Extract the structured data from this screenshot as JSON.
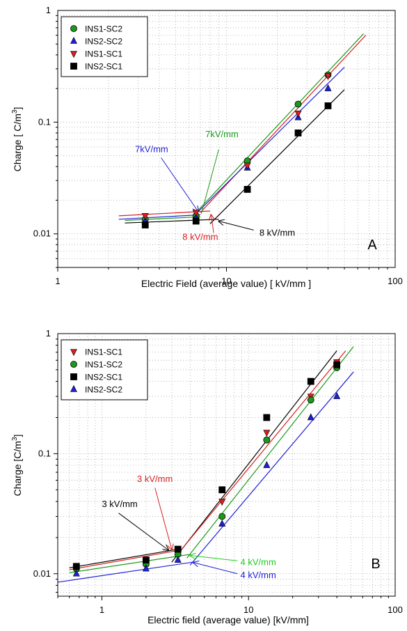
{
  "chart_data": [
    {
      "type": "scatter",
      "panel_label": "A",
      "xlabel": "Electric Field (average value) [ kV/mm ]",
      "ylabel_main": "Charge [ C/m",
      "ylabel_sup": "3",
      "ylabel_end": "]",
      "x_scale": "log",
      "y_scale": "log",
      "xlim": [
        1,
        100
      ],
      "ylim": [
        0.005,
        1
      ],
      "x_ticks": [
        {
          "v": 1,
          "label": "1"
        },
        {
          "v": 10,
          "label": "10"
        },
        {
          "v": 100,
          "label": "100"
        }
      ],
      "y_ticks": [
        {
          "v": 0.01,
          "label": "0.01"
        },
        {
          "v": 0.1,
          "label": "0.1"
        },
        {
          "v": 1,
          "label": "1"
        }
      ],
      "grid": "dotted",
      "legend_position": "top-left",
      "series": [
        {
          "name": "INS1-SC2",
          "marker": "circle",
          "color": "#1a9a1a",
          "x": [
            3.3,
            6.6,
            13.3,
            26.6,
            40
          ],
          "y": [
            0.0135,
            0.0145,
            0.045,
            0.145,
            0.265
          ]
        },
        {
          "name": "INS2-SC2",
          "marker": "triangle-up",
          "color": "#1f1fd6",
          "x": [
            3.3,
            6.6,
            13.3,
            26.6,
            40
          ],
          "y": [
            0.013,
            0.014,
            0.039,
            0.11,
            0.2
          ]
        },
        {
          "name": "INS1-SC1",
          "marker": "triangle-down",
          "color": "#d62020",
          "x": [
            3.3,
            6.6,
            13.3,
            26.6,
            40
          ],
          "y": [
            0.0145,
            0.0155,
            0.041,
            0.12,
            0.26
          ]
        },
        {
          "name": "INS2-SC1",
          "marker": "square",
          "color": "#000000",
          "x": [
            3.3,
            6.6,
            13.3,
            26.6,
            40
          ],
          "y": [
            0.012,
            0.013,
            0.025,
            0.08,
            0.14
          ]
        }
      ],
      "fit_lines": [
        {
          "color": "#1a9a1a",
          "pts": [
            [
              6.6,
              0.0155
            ],
            [
              65,
              0.62
            ]
          ]
        },
        {
          "color": "#d62020",
          "pts": [
            [
              2.3,
              0.0145
            ],
            [
              8,
              0.016
            ]
          ]
        },
        {
          "color": "#d62020",
          "pts": [
            [
              7,
              0.0155
            ],
            [
              67,
              0.6
            ]
          ]
        },
        {
          "color": "#1f1fd6",
          "pts": [
            [
              2.3,
              0.0135
            ],
            [
              7,
              0.0148
            ]
          ]
        },
        {
          "color": "#1f1fd6",
          "pts": [
            [
              6.5,
              0.0148
            ],
            [
              50,
              0.31
            ]
          ]
        },
        {
          "color": "#1a9a1a",
          "pts": [
            [
              2.5,
              0.0132
            ],
            [
              7,
              0.0142
            ]
          ]
        },
        {
          "color": "#000000",
          "pts": [
            [
              2.5,
              0.0125
            ],
            [
              9,
              0.0135
            ]
          ]
        },
        {
          "color": "#000000",
          "pts": [
            [
              8,
              0.0123
            ],
            [
              50,
              0.195
            ]
          ]
        }
      ],
      "annotations": [
        {
          "text": "7kV/mm",
          "color": "#1a9a1a",
          "tx": 9.4,
          "ty": 0.0735,
          "anchor": "middle",
          "from": [
            9.0,
            0.057
          ],
          "to": [
            7.1,
            0.0152
          ],
          "arrow": "line"
        },
        {
          "text": "7kV/mm",
          "color": "#1f1fd6",
          "tx": 3.6,
          "ty": 0.054,
          "anchor": "middle",
          "from": [
            4.1,
            0.048
          ],
          "to": [
            6.8,
            0.0158
          ],
          "arrow": "open"
        },
        {
          "text": "8 kV/mm",
          "color": "#d62020",
          "tx": 7.0,
          "ty": 0.0088,
          "anchor": "middle",
          "from": [
            8.4,
            0.0102
          ],
          "to": [
            8.1,
            0.0148
          ],
          "arrow": "open"
        },
        {
          "text": "8 kV/mm",
          "color": "#000000",
          "tx": 20,
          "ty": 0.0096,
          "anchor": "middle",
          "from": [
            14.5,
            0.0108
          ],
          "to": [
            9.0,
            0.013
          ],
          "arrow": "open"
        }
      ]
    },
    {
      "type": "scatter",
      "panel_label": "B",
      "xlabel": "Electric field (average value) [kV/mm]",
      "ylabel_main": "Charge [C/m",
      "ylabel_sup": "3",
      "ylabel_end": "]",
      "x_scale": "log",
      "y_scale": "log",
      "xlim": [
        0.5,
        100
      ],
      "ylim": [
        0.0065,
        1
      ],
      "x_ticks": [
        {
          "v": 1,
          "label": "1"
        },
        {
          "v": 10,
          "label": "10"
        },
        {
          "v": 100,
          "label": "100"
        }
      ],
      "y_ticks": [
        {
          "v": 0.01,
          "label": "0.01"
        },
        {
          "v": 0.1,
          "label": "0.1"
        },
        {
          "v": 1,
          "label": "1"
        }
      ],
      "grid": "dotted",
      "legend_position": "top-left",
      "series": [
        {
          "name": "INS1-SC1",
          "marker": "triangle-down",
          "color": "#d62020",
          "x": [
            0.67,
            2,
            3.3,
            6.6,
            13.3,
            26.6,
            40
          ],
          "y": [
            0.011,
            0.013,
            0.015,
            0.04,
            0.15,
            0.3,
            0.58
          ]
        },
        {
          "name": "INS1-SC2",
          "marker": "circle",
          "color": "#1a9a1a",
          "x": [
            0.67,
            2,
            3.3,
            6.6,
            13.3,
            26.6,
            40
          ],
          "y": [
            0.011,
            0.012,
            0.0145,
            0.03,
            0.13,
            0.28,
            0.52
          ]
        },
        {
          "name": "INS2-SC1",
          "marker": "square",
          "color": "#000000",
          "x": [
            0.67,
            2,
            3.3,
            6.6,
            13.3,
            26.6,
            40
          ],
          "y": [
            0.0115,
            0.013,
            0.016,
            0.05,
            0.2,
            0.4,
            0.55
          ]
        },
        {
          "name": "INS2-SC2",
          "marker": "triangle-up",
          "color": "#1f1fd6",
          "x": [
            0.67,
            2,
            3.3,
            6.6,
            13.3,
            26.6,
            40
          ],
          "y": [
            0.01,
            0.011,
            0.013,
            0.026,
            0.08,
            0.2,
            0.3
          ]
        }
      ],
      "fit_lines": [
        {
          "color": "#d62020",
          "pts": [
            [
              0.6,
              0.0108
            ],
            [
              3.2,
              0.0155
            ]
          ]
        },
        {
          "color": "#000000",
          "pts": [
            [
              0.6,
              0.0112
            ],
            [
              3.3,
              0.016
            ]
          ]
        },
        {
          "color": "#1a9a1a",
          "pts": [
            [
              0.6,
              0.0102
            ],
            [
              4,
              0.0145
            ]
          ]
        },
        {
          "color": "#1f1fd6",
          "pts": [
            [
              0.5,
              0.0085
            ],
            [
              4.2,
              0.0125
            ]
          ]
        },
        {
          "color": "#000000",
          "pts": [
            [
              3,
              0.0125
            ],
            [
              40,
              0.72
            ]
          ]
        },
        {
          "color": "#d62020",
          "pts": [
            [
              3.2,
              0.014
            ],
            [
              46,
              0.72
            ]
          ]
        },
        {
          "color": "#1a9a1a",
          "pts": [
            [
              3.8,
              0.0135
            ],
            [
              52,
              0.78
            ]
          ]
        },
        {
          "color": "#1f1fd6",
          "pts": [
            [
              4,
              0.0118
            ],
            [
              52,
              0.48
            ]
          ]
        }
      ],
      "annotations": [
        {
          "text": "3 kV/mm",
          "color": "#d62020",
          "tx": 2.3,
          "ty": 0.058,
          "anchor": "middle",
          "from": [
            2.3,
            0.052
          ],
          "to": [
            3.0,
            0.0158
          ],
          "arrow": "open"
        },
        {
          "text": "3 kV/mm",
          "color": "#000000",
          "tx": 1.0,
          "ty": 0.036,
          "anchor": "start",
          "from": [
            1.3,
            0.032
          ],
          "to": [
            2.85,
            0.0157
          ],
          "arrow": "open"
        },
        {
          "text": "4 kV/mm",
          "color": "#1ccc1c",
          "tx": 8.8,
          "ty": 0.0118,
          "anchor": "start",
          "from": [
            8.4,
            0.0128
          ],
          "to": [
            4.0,
            0.0142
          ],
          "arrow": "open"
        },
        {
          "text": "4 kV/mm",
          "color": "#1f1fd6",
          "tx": 8.8,
          "ty": 0.0092,
          "anchor": "start",
          "from": [
            8.4,
            0.01
          ],
          "to": [
            4.2,
            0.0124
          ],
          "arrow": "open"
        }
      ]
    }
  ]
}
